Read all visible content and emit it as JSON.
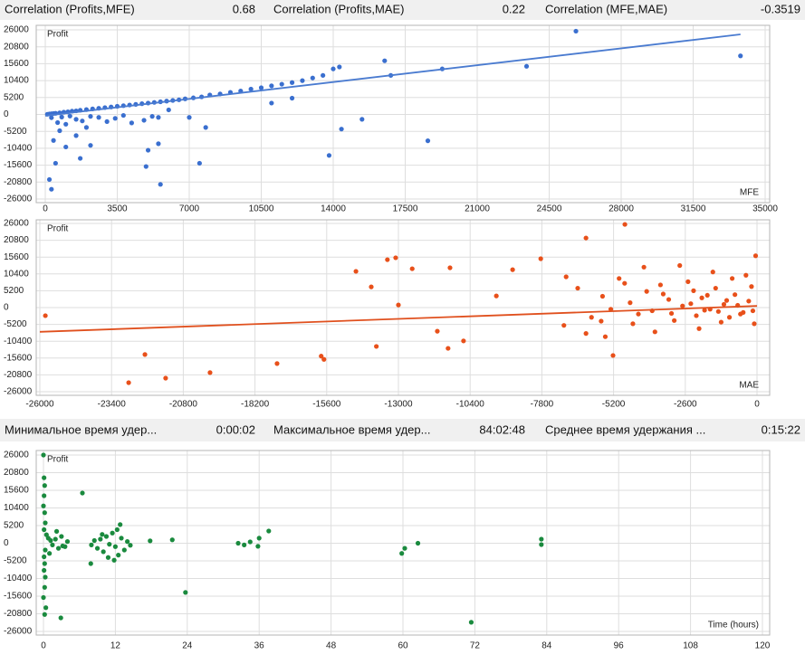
{
  "header": {
    "items": [
      {
        "label": "Correlation (Profits,MFE)",
        "value": 0.68
      },
      {
        "label": "Correlation (Profits,MAE)",
        "value": 0.22
      },
      {
        "label": "Correlation (MFE,MAE)",
        "value": -0.3519
      }
    ]
  },
  "holding": {
    "items": [
      {
        "label": "Минимальное время удер...",
        "value": "0:00:02"
      },
      {
        "label": "Максимальное время удер...",
        "value": "84:02:48"
      },
      {
        "label": "Среднее время удержания ...",
        "value": "0:15:22"
      }
    ]
  },
  "chart_data": [
    {
      "type": "scatter",
      "y_label": "Profit",
      "x_label": "MFE",
      "color": "#3a6fcf",
      "grid": true,
      "xlim": [
        0,
        35000
      ],
      "ylim": [
        -26000,
        26000
      ],
      "xticks": [
        0,
        3500,
        7000,
        10500,
        14000,
        17500,
        21000,
        24500,
        28000,
        31500,
        35000
      ],
      "yticks": [
        26000,
        20800,
        15600,
        10400,
        5200,
        0,
        -5200,
        -10400,
        -15600,
        -20800,
        -26000
      ],
      "x": [
        100,
        200,
        300,
        400,
        500,
        700,
        900,
        1100,
        1300,
        1500,
        1700,
        2000,
        2300,
        2600,
        2900,
        3200,
        3500,
        3800,
        4100,
        4400,
        4700,
        5000,
        5300,
        5600,
        5900,
        6200,
        6500,
        6800,
        7200,
        7600,
        8000,
        8500,
        9000,
        9500,
        10000,
        10500,
        11000,
        11500,
        12000,
        12500,
        13000,
        13500,
        14000,
        14300,
        16500,
        16800,
        19300,
        23400,
        25800,
        33800,
        300,
        600,
        800,
        1000,
        1200,
        1500,
        1800,
        2200,
        2600,
        3000,
        3400,
        3800,
        4200,
        4800,
        5200,
        5500,
        6000,
        7000,
        7500,
        400,
        700,
        1000,
        1500,
        2000,
        5000,
        5500,
        7800,
        11000,
        12000,
        13800,
        14400,
        15400,
        18600,
        5600,
        4900,
        2200,
        1700,
        500,
        300,
        200
      ],
      "values": [
        50,
        150,
        200,
        300,
        350,
        500,
        700,
        800,
        1000,
        1100,
        1300,
        1500,
        1700,
        1900,
        2100,
        2300,
        2500,
        2700,
        2900,
        3100,
        3300,
        3500,
        3700,
        3900,
        4100,
        4300,
        4500,
        4800,
        5100,
        5400,
        6000,
        6300,
        6800,
        7200,
        7800,
        8200,
        8800,
        9300,
        9800,
        10400,
        11200,
        12000,
        14000,
        14600,
        16500,
        12000,
        14000,
        14800,
        25600,
        18000,
        -1000,
        -2500,
        -800,
        -3000,
        -500,
        -1500,
        -2000,
        -600,
        -900,
        -2200,
        -1200,
        -300,
        -2600,
        -1800,
        -600,
        -900,
        1400,
        -900,
        -15000,
        -8000,
        -5000,
        -10000,
        -6500,
        -4000,
        -11000,
        -9000,
        -4000,
        3500,
        5000,
        -12600,
        -4500,
        -1500,
        -8100,
        -21500,
        -16000,
        -9500,
        -13500,
        -15000,
        -23000,
        -20000
      ],
      "trendline": {
        "color": "#4a7bd0",
        "x": [
          0,
          33800
        ],
        "values": [
          -400,
          24600
        ]
      }
    },
    {
      "type": "scatter",
      "y_label": "Profit",
      "x_label": "MAE",
      "color": "#e8501a",
      "grid": true,
      "xlim": [
        -26000,
        0
      ],
      "ylim": [
        -26000,
        26000
      ],
      "xticks": [
        -26000,
        -23400,
        -20800,
        -18200,
        -15600,
        -13000,
        -10400,
        -7800,
        -5200,
        -2600,
        0
      ],
      "yticks": [
        26000,
        20800,
        15600,
        10400,
        5200,
        0,
        -5200,
        -10400,
        -15600,
        -20800,
        -26000
      ],
      "x": [
        -25800,
        -22190,
        -22780,
        -21440,
        -19830,
        -17400,
        -15800,
        -15700,
        -14540,
        -13985,
        -13400,
        -13100,
        -12500,
        -11130,
        -11590,
        -11200,
        -10640,
        -13000,
        -13800,
        -9450,
        -8860,
        -7840,
        -6920,
        -6200,
        -4790,
        -5650,
        -5220,
        -300,
        -500,
        -800,
        -1000,
        -1200,
        -1500,
        -1700,
        -2000,
        -2200,
        -2500,
        -2700,
        -3000,
        -3200,
        -3500,
        -3800,
        -4000,
        -4300,
        -4600,
        -5000,
        -5300,
        -5600,
        -6000,
        -6500,
        -7000,
        -100,
        -200,
        -400,
        -600,
        -900,
        -1100,
        -1300,
        -1600,
        -1800,
        -2100,
        -2400,
        -2800,
        -3100,
        -3400,
        -3700,
        -4100,
        -4500,
        -4800,
        -5500,
        -6200,
        -50,
        -150,
        -700,
        -1400,
        -1900,
        -2300
      ],
      "values": [
        -2500,
        -14500,
        -23200,
        -21800,
        -20100,
        -17300,
        -15000,
        -16000,
        11200,
        6400,
        14800,
        15400,
        12000,
        12300,
        -7300,
        -12600,
        -10300,
        800,
        -12000,
        3600,
        11700,
        15100,
        9500,
        21500,
        25700,
        -4200,
        -14800,
        2000,
        -1500,
        4000,
        -3000,
        1000,
        6000,
        -500,
        3000,
        -2500,
        8000,
        500,
        -4000,
        2500,
        7000,
        -1000,
        5000,
        -2000,
        1500,
        9000,
        -500,
        3500,
        -3000,
        6000,
        -5500,
        -5000,
        6500,
        10000,
        -2000,
        9000,
        2200,
        -4500,
        11000,
        3800,
        -6500,
        1200,
        13000,
        -1800,
        4200,
        -7500,
        12500,
        -5000,
        7500,
        -9000,
        -8000,
        16000,
        -1000,
        700,
        -1200,
        -800,
        5200
      ],
      "trendline": {
        "color": "#e0501e",
        "x": [
          -26000,
          0
        ],
        "values": [
          -7500,
          500
        ]
      }
    },
    {
      "type": "scatter",
      "y_label": "Profit",
      "x_label": "Time (hours)",
      "color": "#1a8a3e",
      "grid": true,
      "xlim": [
        0,
        120
      ],
      "ylim": [
        -26000,
        26000
      ],
      "xticks": [
        0,
        12,
        24,
        36,
        48,
        60,
        72,
        84,
        96,
        108,
        120
      ],
      "yticks": [
        26000,
        20800,
        15600,
        10400,
        5200,
        0,
        -5200,
        -10400,
        -15600,
        -20800,
        -26000
      ],
      "x": [
        0,
        0.1,
        0.2,
        0.1,
        0,
        0.2,
        0.3,
        0.1,
        0.5,
        0.8,
        1.2,
        1.5,
        2,
        2.5,
        3,
        3.2,
        0.3,
        0.1,
        0.2,
        0.1,
        0.3,
        0.2,
        0,
        0.4,
        0.2,
        1,
        2.2,
        2.9,
        6.5,
        4,
        3.6,
        8,
        8.5,
        9,
        9.5,
        10,
        10.5,
        11,
        11.5,
        12,
        12.3,
        12.5,
        13,
        13.5,
        14,
        14.5,
        11.8,
        12.8,
        7.9,
        10.8,
        9.8,
        17.8,
        21.5,
        23.7,
        32.5,
        33.5,
        34.5,
        35.8,
        36,
        37.6,
        59.8,
        60.3,
        62.5,
        71.4,
        83.1,
        83.1
      ],
      "values": [
        26000,
        19300,
        17000,
        14000,
        11000,
        9000,
        6000,
        4000,
        2500,
        1500,
        800,
        -500,
        1200,
        -1500,
        2000,
        -800,
        -2000,
        -4000,
        -6000,
        -8000,
        -10000,
        -13000,
        -16000,
        -19000,
        -21000,
        -3000,
        3500,
        -22000,
        14800,
        500,
        -1000,
        -500,
        800,
        -1500,
        1200,
        -2500,
        2000,
        -300,
        3000,
        -1000,
        4000,
        -3500,
        1500,
        -2000,
        500,
        -600,
        -5000,
        5500,
        -6000,
        -4200,
        2600,
        700,
        1000,
        -14500,
        0,
        -500,
        400,
        -900,
        1500,
        3600,
        -3000,
        -1500,
        0,
        -23300,
        1200,
        -400
      ]
    }
  ]
}
